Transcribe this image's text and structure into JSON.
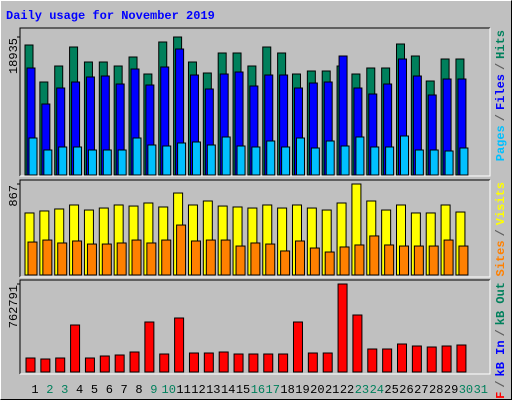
{
  "chart_data": [
    {
      "type": "bar",
      "title": "Daily usage for November 2019",
      "categories": [
        "1",
        "2",
        "3",
        "4",
        "5",
        "6",
        "7",
        "8",
        "9",
        "10",
        "11",
        "12",
        "13",
        "14",
        "15",
        "16",
        "17",
        "18",
        "19",
        "20",
        "21",
        "22",
        "23",
        "24",
        "25",
        "26",
        "27",
        "28",
        "29",
        "30",
        "31"
      ],
      "weekend_indices": [
        1,
        2,
        8,
        9,
        15,
        16,
        22,
        23,
        29,
        30
      ],
      "weekday_color": "#000000",
      "weekend_color": "#00805c",
      "legend_separator": "/",
      "ylim": [
        0,
        18935
      ],
      "yticks": [
        18935
      ],
      "series": [
        {
          "name": "Hits",
          "color": "#00805c",
          "values": [
            17837,
            12760,
            14956,
            17563,
            15505,
            15505,
            14956,
            16191,
            13858,
            18249,
            18935,
            15505,
            13995,
            16740,
            16740,
            14956,
            17563,
            16740,
            13858,
            14270,
            14270,
            14956,
            13858,
            14682,
            14682,
            17974,
            16328,
            12898,
            15916,
            15916,
            null
          ]
        },
        {
          "name": "Files",
          "color": "#0000ff",
          "values": [
            14681,
            9742,
            11937,
            12761,
            13447,
            13584,
            12486,
            14544,
            12349,
            14819,
            17288,
            13721,
            11800,
            13858,
            14133,
            12212,
            13721,
            13721,
            11937,
            12623,
            12761,
            16328,
            11937,
            11114,
            12486,
            15916,
            13584,
            10977,
            13172,
            13172,
            null
          ]
        },
        {
          "name": "Pages",
          "color": "#00c0ff",
          "values": [
            5077,
            3430,
            3842,
            3842,
            3430,
            3430,
            3430,
            5077,
            4116,
            3979,
            4391,
            4528,
            4116,
            5214,
            3979,
            3842,
            4665,
            3842,
            5077,
            3705,
            4665,
            3979,
            5214,
            3842,
            3842,
            5351,
            3430,
            3430,
            3293,
            3705,
            null
          ]
        }
      ]
    },
    {
      "type": "bar",
      "legend_separator": "/",
      "ylim": [
        0,
        867
      ],
      "yticks": [
        867
      ],
      "series": [
        {
          "name": "Visits",
          "color": "#ffff00",
          "values": [
            591,
            610,
            629,
            667,
            619,
            638,
            667,
            657,
            686,
            648,
            781,
            667,
            705,
            657,
            648,
            638,
            667,
            638,
            667,
            638,
            619,
            686,
            867,
            705,
            619,
            667,
            591,
            591,
            667,
            600,
            null
          ]
        },
        {
          "name": "Sites",
          "color": "#ff8000",
          "values": [
            314,
            333,
            305,
            324,
            295,
            295,
            305,
            333,
            305,
            333,
            476,
            324,
            333,
            333,
            276,
            305,
            295,
            229,
            324,
            257,
            219,
            267,
            286,
            372,
            286,
            276,
            276,
            276,
            333,
            276,
            null
          ]
        }
      ]
    },
    {
      "type": "bar",
      "legend_separator": "/",
      "ylim": [
        0,
        762791
      ],
      "yticks": [
        762791
      ],
      "series": [
        {
          "name": "kB Out",
          "color": "#00805c"
        },
        {
          "name": "kB In",
          "color": "#0000ff"
        },
        {
          "name": "kB F",
          "color": "#ff0000",
          "values": [
            121352,
            112684,
            121352,
            407396,
            121352,
            138688,
            147356,
            173360,
            433400,
            156024,
            468072,
            164692,
            164692,
            173360,
            156024,
            156024,
            156024,
            156024,
            433400,
            164692,
            164692,
            762791,
            494076,
            199364,
            199364,
            242704,
            225368,
            216700,
            225368,
            234036,
            null
          ]
        }
      ]
    }
  ]
}
